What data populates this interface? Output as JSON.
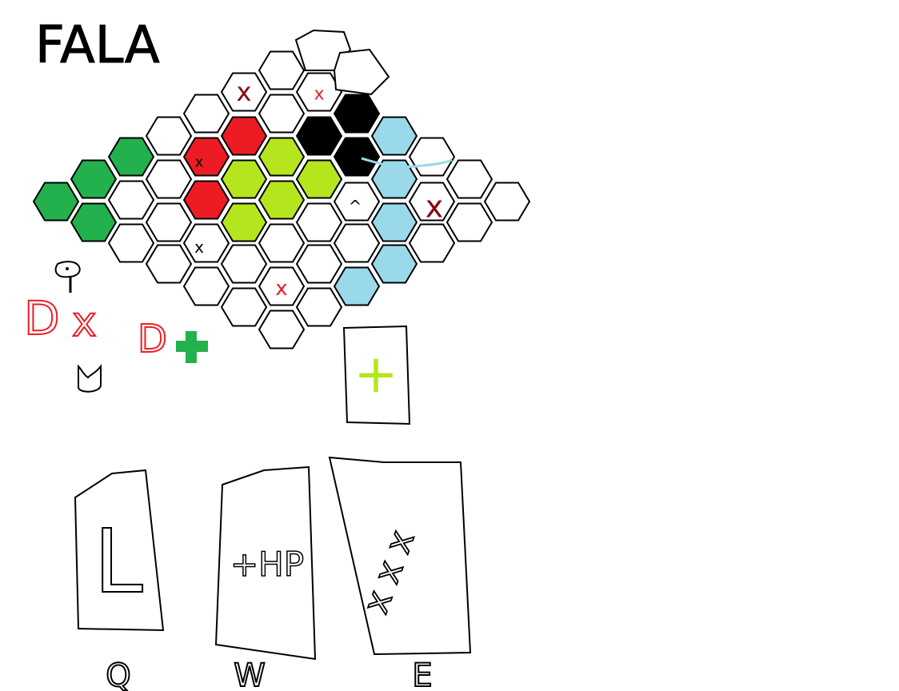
{
  "title": "FALA",
  "colors": {
    "green": "#22b14c",
    "red": "#ed1c24",
    "lime": "#b5e61d",
    "black": "#000000",
    "lightblue": "#99d9ea",
    "empty": "#ffffff",
    "darkred": "#880015"
  },
  "board": {
    "tiles": [
      {
        "id": "t1",
        "state": "empty",
        "mark": ""
      },
      {
        "id": "t2",
        "state": "empty",
        "mark": ""
      },
      {
        "id": "t3",
        "state": "empty",
        "mark": ""
      },
      {
        "id": "t4",
        "state": "empty",
        "mark": "x"
      },
      {
        "id": "t5",
        "state": "empty",
        "mark": ""
      },
      {
        "id": "t6",
        "state": "empty",
        "mark": "x"
      },
      {
        "id": "t7",
        "state": "empty",
        "mark": ""
      },
      {
        "id": "t8",
        "state": "empty",
        "mark": ""
      },
      {
        "id": "t9",
        "state": "red",
        "mark": ""
      },
      {
        "id": "t10",
        "state": "empty",
        "mark": ""
      },
      {
        "id": "t11",
        "state": "black",
        "mark": ""
      },
      {
        "id": "t12",
        "state": "black",
        "mark": ""
      },
      {
        "id": "t13",
        "state": "empty",
        "mark": ""
      },
      {
        "id": "t14",
        "state": "green",
        "mark": ""
      },
      {
        "id": "t15",
        "state": "empty",
        "mark": ""
      },
      {
        "id": "t16",
        "state": "red",
        "mark": "x"
      },
      {
        "id": "t17",
        "state": "lime",
        "mark": ""
      },
      {
        "id": "t18",
        "state": "lime",
        "mark": ""
      },
      {
        "id": "t19",
        "state": "black",
        "mark": ""
      },
      {
        "id": "t20",
        "state": "lightblue",
        "mark": ""
      },
      {
        "id": "t21",
        "state": "empty",
        "mark": ""
      },
      {
        "id": "t22",
        "state": "green",
        "mark": ""
      },
      {
        "id": "t23",
        "state": "empty",
        "mark": ""
      },
      {
        "id": "t24",
        "state": "empty",
        "mark": ""
      },
      {
        "id": "t25",
        "state": "lime",
        "mark": ""
      },
      {
        "id": "t26",
        "state": "lime",
        "mark": ""
      },
      {
        "id": "t27",
        "state": "lime",
        "mark": ""
      },
      {
        "id": "t28",
        "state": "lightblue",
        "mark": ""
      },
      {
        "id": "t29",
        "state": "empty",
        "mark": ""
      },
      {
        "id": "t30",
        "state": "empty",
        "mark": ""
      },
      {
        "id": "t31",
        "state": "green",
        "mark": ""
      },
      {
        "id": "t32",
        "state": "empty",
        "mark": ""
      },
      {
        "id": "t33",
        "state": "red",
        "mark": ""
      },
      {
        "id": "t34",
        "state": "lime",
        "mark": ""
      },
      {
        "id": "t35",
        "state": "empty",
        "mark": "^"
      },
      {
        "id": "t36",
        "state": "empty",
        "mark": "x"
      },
      {
        "id": "t37",
        "state": "empty",
        "mark": ""
      },
      {
        "id": "t38",
        "state": "green",
        "mark": ""
      },
      {
        "id": "t39",
        "state": "empty",
        "mark": ""
      },
      {
        "id": "t40",
        "state": "lime",
        "mark": ""
      },
      {
        "id": "t41",
        "state": "empty",
        "mark": ""
      },
      {
        "id": "t42",
        "state": "lightblue",
        "mark": ""
      },
      {
        "id": "t43",
        "state": "empty",
        "mark": ""
      },
      {
        "id": "t44",
        "state": "empty",
        "mark": ""
      },
      {
        "id": "t45",
        "state": "empty",
        "mark": "x"
      },
      {
        "id": "t46",
        "state": "empty",
        "mark": ""
      },
      {
        "id": "t47",
        "state": "empty",
        "mark": ""
      },
      {
        "id": "t48",
        "state": "lightblue",
        "mark": ""
      },
      {
        "id": "t49",
        "state": "empty",
        "mark": ""
      },
      {
        "id": "t50",
        "state": "empty",
        "mark": ""
      },
      {
        "id": "t51",
        "state": "empty",
        "mark": ""
      },
      {
        "id": "t52",
        "state": "empty",
        "mark": "x"
      },
      {
        "id": "t53",
        "state": "lightblue",
        "mark": ""
      },
      {
        "id": "t54",
        "state": "empty",
        "mark": ""
      },
      {
        "id": "t55",
        "state": "empty",
        "mark": ""
      },
      {
        "id": "t56",
        "state": "empty",
        "mark": ""
      },
      {
        "id": "t57",
        "state": "empty",
        "mark": ""
      }
    ]
  },
  "status": {
    "red_marks": [
      "D",
      "x",
      "D"
    ],
    "plus_color": "green"
  },
  "selected_card": {
    "symbol": "+"
  },
  "cards": [
    {
      "key": "Q",
      "symbol": "L",
      "content": ""
    },
    {
      "key": "W",
      "symbol": "",
      "content": "+HP"
    },
    {
      "key": "E",
      "symbol": "",
      "content": "x x x"
    }
  ]
}
